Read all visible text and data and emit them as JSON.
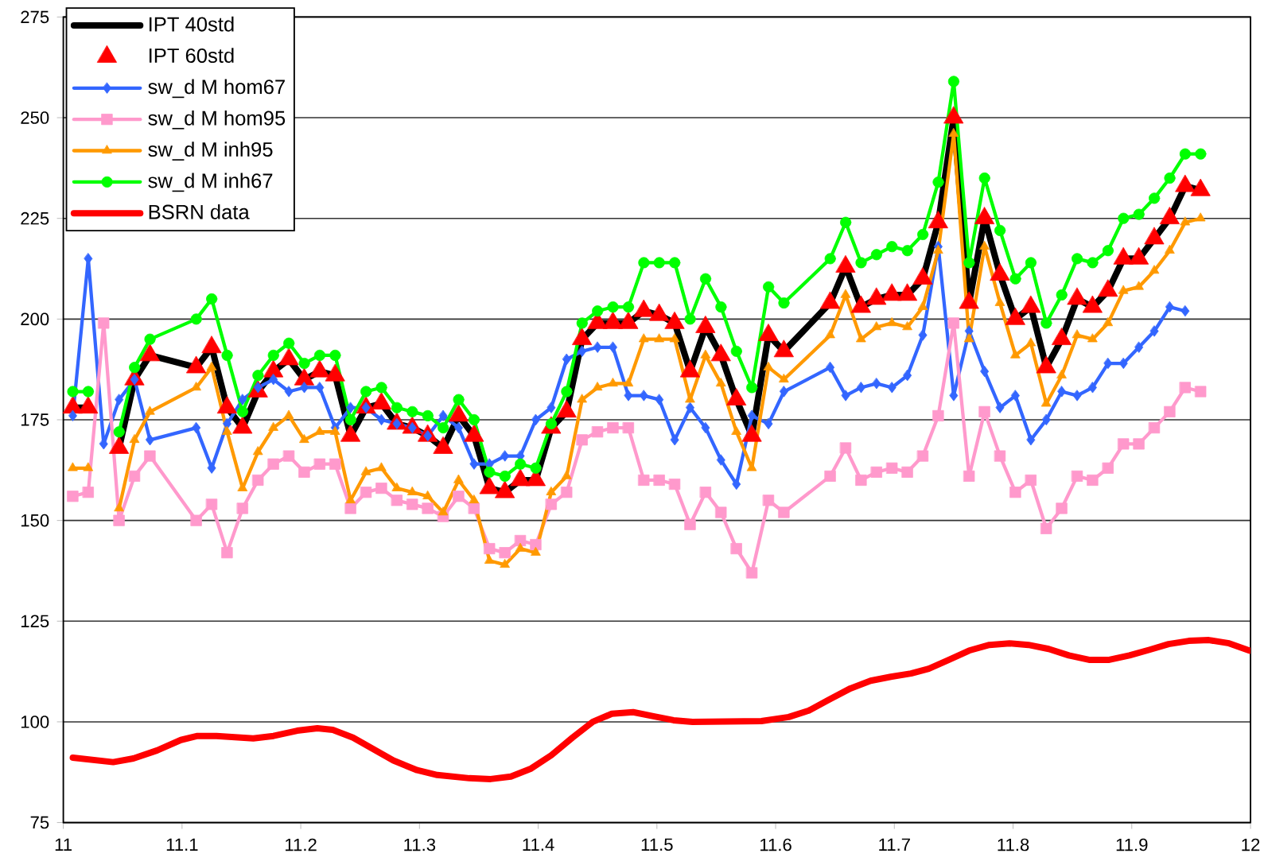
{
  "chart_data": {
    "type": "line",
    "x": [
      11.008,
      11.021,
      11.034,
      11.047,
      11.06,
      11.073,
      11.112,
      11.125,
      11.138,
      11.151,
      11.164,
      11.177,
      11.19,
      11.203,
      11.216,
      11.229,
      11.242,
      11.255,
      11.268,
      11.281,
      11.294,
      11.307,
      11.32,
      11.333,
      11.346,
      11.359,
      11.372,
      11.385,
      11.398,
      11.411,
      11.424,
      11.437,
      11.45,
      11.463,
      11.476,
      11.489,
      11.502,
      11.515,
      11.528,
      11.541,
      11.554,
      11.567,
      11.58,
      11.594,
      11.607,
      11.646,
      11.659,
      11.672,
      11.685,
      11.698,
      11.711,
      11.724,
      11.737,
      11.75,
      11.763,
      11.776,
      11.789,
      11.802,
      11.815,
      11.828,
      11.841,
      11.854,
      11.867,
      11.88,
      11.893,
      11.906,
      11.919,
      11.932,
      11.945,
      11.958
    ],
    "series": [
      {
        "name": "IPT  40std",
        "color": "#000000",
        "marker": "none",
        "values": [
          178,
          178,
          null,
          168,
          185,
          191,
          188,
          193,
          178,
          173,
          182,
          187,
          190,
          185,
          187,
          186,
          171,
          178,
          179,
          174,
          173,
          171,
          168,
          176,
          171,
          158,
          157,
          160,
          160,
          173,
          177,
          195,
          199,
          199,
          199,
          202,
          201,
          199,
          187,
          198,
          191,
          180,
          171,
          196,
          192,
          204,
          213,
          203,
          205,
          206,
          206,
          210,
          224,
          250,
          204,
          225,
          211,
          200,
          203,
          188,
          195,
          205,
          203,
          207,
          215,
          215,
          220,
          225,
          233,
          232
        ]
      },
      {
        "name": "IPT 60std",
        "type": "scatter",
        "color": "#ff0000",
        "marker": "triangle",
        "values": [
          178,
          178,
          null,
          168,
          185,
          191,
          188,
          193,
          178,
          173,
          182,
          187,
          190,
          185,
          187,
          186,
          171,
          178,
          179,
          174,
          173,
          171,
          168,
          176,
          171,
          158,
          157,
          160,
          160,
          173,
          177,
          195,
          199,
          199,
          199,
          202,
          201,
          199,
          187,
          198,
          191,
          180,
          171,
          196,
          192,
          204,
          213,
          203,
          205,
          206,
          206,
          210,
          224,
          250,
          204,
          225,
          211,
          200,
          203,
          188,
          195,
          205,
          203,
          207,
          215,
          215,
          220,
          225,
          233,
          232
        ]
      },
      {
        "name": "sw_d M hom67",
        "color": "#3366ff",
        "marker": "diamond",
        "values": [
          176,
          215,
          169,
          180,
          185,
          170,
          173,
          163,
          174,
          180,
          183,
          185,
          182,
          183,
          183,
          173,
          178,
          178,
          175,
          174,
          173,
          171,
          176,
          173,
          164,
          164,
          166,
          166,
          175,
          178,
          190,
          192,
          193,
          193,
          181,
          181,
          180,
          170,
          178,
          173,
          165,
          159,
          176,
          174,
          182,
          188,
          181,
          183,
          184,
          183,
          186,
          196,
          218,
          181,
          197,
          187,
          178,
          181,
          170,
          175,
          182,
          181,
          183,
          189,
          189,
          193,
          197,
          203,
          202,
          null
        ]
      },
      {
        "name": "sw_d M hom95",
        "color": "#ff99cc",
        "marker": "square",
        "values": [
          156,
          157,
          199,
          150,
          161,
          166,
          150,
          154,
          142,
          153,
          160,
          164,
          166,
          162,
          164,
          164,
          153,
          157,
          158,
          155,
          154,
          153,
          151,
          156,
          153,
          143,
          142,
          145,
          144,
          154,
          157,
          170,
          172,
          173,
          173,
          160,
          160,
          159,
          149,
          157,
          152,
          143,
          137,
          155,
          152,
          161,
          168,
          160,
          162,
          163,
          162,
          166,
          176,
          199,
          161,
          177,
          166,
          157,
          160,
          148,
          153,
          161,
          160,
          163,
          169,
          169,
          173,
          177,
          183,
          182
        ]
      },
      {
        "name": "sw_d M inh95",
        "color": "#ff9900",
        "marker": "triangle",
        "values": [
          163,
          163,
          null,
          153,
          170,
          177,
          183,
          188,
          172,
          158,
          167,
          173,
          176,
          170,
          172,
          172,
          155,
          162,
          163,
          158,
          157,
          156,
          152,
          160,
          155,
          140,
          139,
          143,
          142,
          157,
          161,
          180,
          183,
          184,
          184,
          195,
          195,
          195,
          180,
          191,
          184,
          172,
          163,
          188,
          185,
          196,
          206,
          195,
          198,
          199,
          198,
          203,
          217,
          246,
          195,
          218,
          204,
          191,
          194,
          179,
          186,
          196,
          195,
          199,
          207,
          208,
          212,
          217,
          224,
          225
        ]
      },
      {
        "name": "sw_d M inh67",
        "color": "#00ff00",
        "marker": "circle",
        "values": [
          182,
          182,
          null,
          172,
          188,
          195,
          200,
          205,
          191,
          177,
          186,
          191,
          194,
          189,
          191,
          191,
          175,
          182,
          183,
          178,
          177,
          176,
          173,
          180,
          175,
          162,
          161,
          164,
          163,
          174,
          182,
          199,
          202,
          203,
          203,
          214,
          214,
          214,
          200,
          210,
          203,
          192,
          183,
          208,
          204,
          215,
          224,
          214,
          216,
          218,
          217,
          221,
          234,
          259,
          214,
          235,
          222,
          210,
          214,
          199,
          206,
          215,
          214,
          217,
          225,
          226,
          230,
          235,
          241,
          241
        ]
      },
      {
        "name": "BSRN data",
        "color": "#ff0000",
        "marker": "none",
        "x": [
          11.008,
          11.042,
          11.059,
          11.079,
          11.099,
          11.113,
          11.129,
          11.16,
          11.177,
          11.197,
          11.214,
          11.227,
          11.244,
          11.278,
          11.298,
          11.315,
          11.342,
          11.36,
          11.377,
          11.394,
          11.411,
          11.429,
          11.446,
          11.462,
          11.48,
          11.497,
          11.514,
          11.53,
          11.588,
          11.611,
          11.628,
          11.645,
          11.663,
          11.68,
          11.697,
          11.714,
          11.729,
          11.746,
          11.763,
          11.78,
          11.797,
          11.813,
          11.83,
          11.847,
          11.864,
          11.881,
          11.898,
          11.915,
          11.931,
          11.948,
          11.965,
          11.982,
          11.999
        ],
        "values": [
          91.1,
          90.0,
          90.9,
          92.9,
          95.5,
          96.5,
          96.5,
          95.9,
          96.5,
          97.8,
          98.4,
          98.0,
          96.1,
          90.4,
          88.0,
          86.8,
          86.0,
          85.8,
          86.4,
          88.4,
          91.7,
          96.1,
          100.0,
          102.0,
          102.4,
          101.4,
          100.4,
          100.0,
          100.2,
          101.2,
          102.8,
          105.5,
          108.3,
          110.2,
          111.2,
          112.0,
          113.2,
          115.4,
          117.7,
          119.1,
          119.5,
          119.1,
          118.1,
          116.5,
          115.4,
          115.4,
          116.5,
          117.9,
          119.3,
          120.1,
          120.3,
          119.5,
          117.7
        ]
      }
    ],
    "xlim": [
      11,
      12
    ],
    "xticks": [
      11,
      11.1,
      11.2,
      11.3,
      11.4,
      11.5,
      11.6,
      11.7,
      11.8,
      11.9,
      12
    ],
    "ylim": [
      75,
      275
    ],
    "yticks": [
      75,
      100,
      125,
      150,
      175,
      200,
      225,
      250,
      275
    ],
    "grid": "y",
    "legend": "top left"
  }
}
